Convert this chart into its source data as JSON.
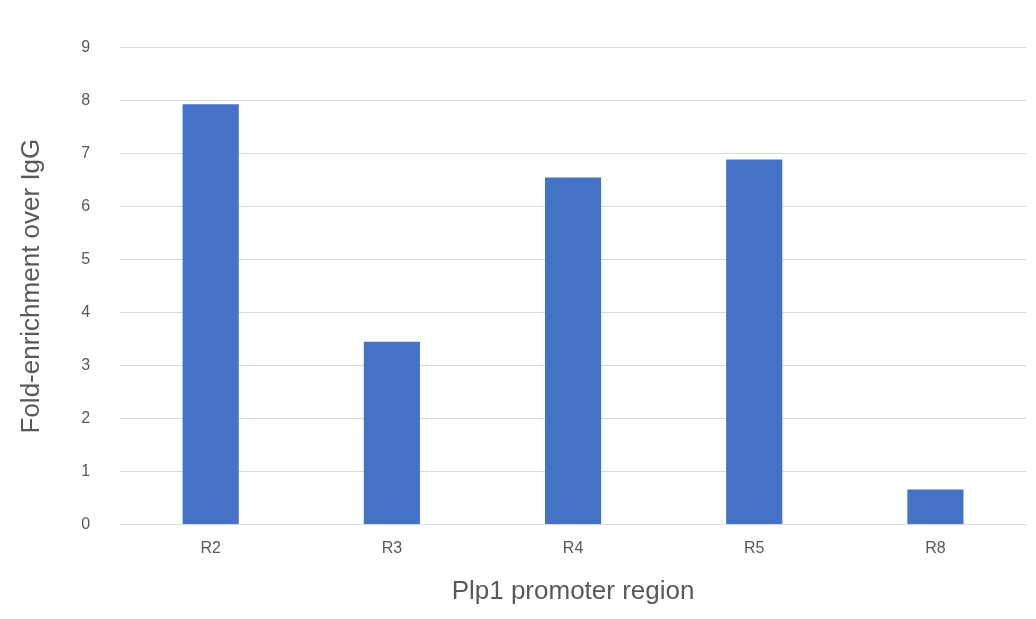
{
  "chart_data": {
    "type": "bar",
    "xlabel": "Plp1 promoter region",
    "ylabel": "Fold-enrichment over IgG",
    "categories": [
      "R2",
      "R3",
      "R4",
      "R5",
      "R8"
    ],
    "values": [
      7.93,
      3.45,
      6.55,
      6.89,
      0.66
    ],
    "color": "#4472c4",
    "ylim": [
      0,
      9
    ],
    "yticks": [
      0,
      1,
      2,
      3,
      4,
      5,
      6,
      7,
      8,
      9
    ],
    "grid": "y"
  }
}
